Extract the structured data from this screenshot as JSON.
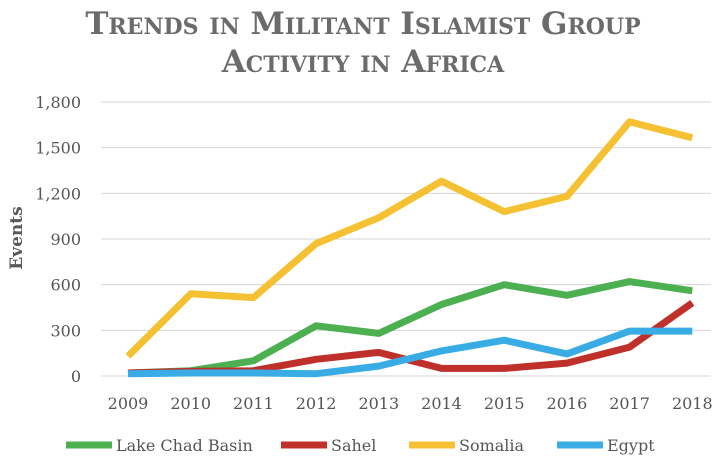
{
  "chart_data": {
    "type": "line",
    "title_lines": [
      "Trends in Militant Islamist Group",
      "Activity in Africa"
    ],
    "xlabel": "",
    "ylabel": "Events",
    "x": [
      "2009",
      "2010",
      "2011",
      "2012",
      "2013",
      "2014",
      "2015",
      "2016",
      "2017",
      "2018"
    ],
    "y_ticks": [
      "0",
      "300",
      "600",
      "900",
      "1,200",
      "1,500",
      "1,800"
    ],
    "ylim": [
      0,
      1800
    ],
    "grid": true,
    "legend_position": "bottom",
    "series": [
      {
        "name": "Lake Chad Basin",
        "color": "#4caf50",
        "values": [
          20,
          35,
          100,
          330,
          280,
          470,
          600,
          530,
          620,
          560
        ]
      },
      {
        "name": "Sahel",
        "color": "#c0302a",
        "values": [
          20,
          30,
          35,
          110,
          155,
          50,
          50,
          85,
          190,
          480
        ]
      },
      {
        "name": "Somalia",
        "color": "#f5c132",
        "values": [
          130,
          540,
          515,
          870,
          1040,
          1280,
          1080,
          1180,
          1670,
          1565
        ]
      },
      {
        "name": "Egypt",
        "color": "#3aace5",
        "values": [
          15,
          20,
          20,
          15,
          65,
          165,
          235,
          145,
          295,
          295
        ]
      }
    ]
  }
}
